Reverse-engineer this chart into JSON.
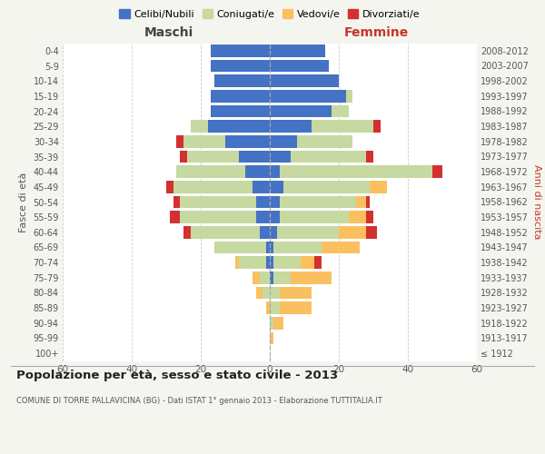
{
  "age_groups": [
    "100+",
    "95-99",
    "90-94",
    "85-89",
    "80-84",
    "75-79",
    "70-74",
    "65-69",
    "60-64",
    "55-59",
    "50-54",
    "45-49",
    "40-44",
    "35-39",
    "30-34",
    "25-29",
    "20-24",
    "15-19",
    "10-14",
    "5-9",
    "0-4"
  ],
  "birth_years": [
    "≤ 1912",
    "1913-1917",
    "1918-1922",
    "1923-1927",
    "1928-1932",
    "1933-1937",
    "1938-1942",
    "1943-1947",
    "1948-1952",
    "1953-1957",
    "1958-1962",
    "1963-1967",
    "1968-1972",
    "1973-1977",
    "1978-1982",
    "1983-1987",
    "1988-1992",
    "1993-1997",
    "1998-2002",
    "2003-2007",
    "2008-2012"
  ],
  "male": {
    "celibi": [
      0,
      0,
      0,
      0,
      0,
      0,
      1,
      1,
      3,
      4,
      4,
      5,
      7,
      9,
      13,
      18,
      17,
      17,
      16,
      17,
      17
    ],
    "coniugati": [
      0,
      0,
      0,
      0,
      2,
      3,
      8,
      15,
      20,
      22,
      22,
      23,
      20,
      15,
      12,
      5,
      0,
      0,
      0,
      0,
      0
    ],
    "vedovi": [
      0,
      0,
      0,
      1,
      2,
      2,
      1,
      0,
      0,
      0,
      0,
      0,
      0,
      0,
      0,
      0,
      0,
      0,
      0,
      0,
      0
    ],
    "divorziati": [
      0,
      0,
      0,
      0,
      0,
      0,
      0,
      0,
      2,
      3,
      2,
      2,
      0,
      2,
      2,
      0,
      0,
      0,
      0,
      0,
      0
    ]
  },
  "female": {
    "nubili": [
      0,
      0,
      0,
      0,
      0,
      1,
      1,
      1,
      2,
      3,
      3,
      4,
      3,
      6,
      8,
      12,
      18,
      22,
      20,
      17,
      16
    ],
    "coniugate": [
      0,
      0,
      1,
      3,
      3,
      5,
      8,
      14,
      18,
      20,
      22,
      25,
      44,
      22,
      16,
      18,
      5,
      2,
      0,
      0,
      0
    ],
    "vedove": [
      0,
      1,
      3,
      9,
      9,
      12,
      4,
      11,
      8,
      5,
      3,
      5,
      0,
      0,
      0,
      0,
      0,
      0,
      0,
      0,
      0
    ],
    "divorziate": [
      0,
      0,
      0,
      0,
      0,
      0,
      2,
      0,
      3,
      2,
      1,
      0,
      3,
      2,
      0,
      2,
      0,
      0,
      0,
      0,
      0
    ]
  },
  "colors": {
    "celibi": "#4472c4",
    "coniugati": "#c5d9a0",
    "vedovi": "#fac060",
    "divorziati": "#d43030"
  },
  "xlim": 60,
  "title": "Popolazione per età, sesso e stato civile - 2013",
  "subtitle": "COMUNE DI TORRE PALLAVICINA (BG) - Dati ISTAT 1° gennaio 2013 - Elaborazione TUTTITALIA.IT",
  "ylabel_left": "Fasce di età",
  "ylabel_right": "Anni di nascita",
  "xlabel_left": "Maschi",
  "xlabel_right": "Femmine",
  "legend_labels": [
    "Celibi/Nubili",
    "Coniugati/e",
    "Vedovi/e",
    "Divorziati/e"
  ],
  "bg_color": "#f5f5f0",
  "plot_bg": "#ffffff"
}
